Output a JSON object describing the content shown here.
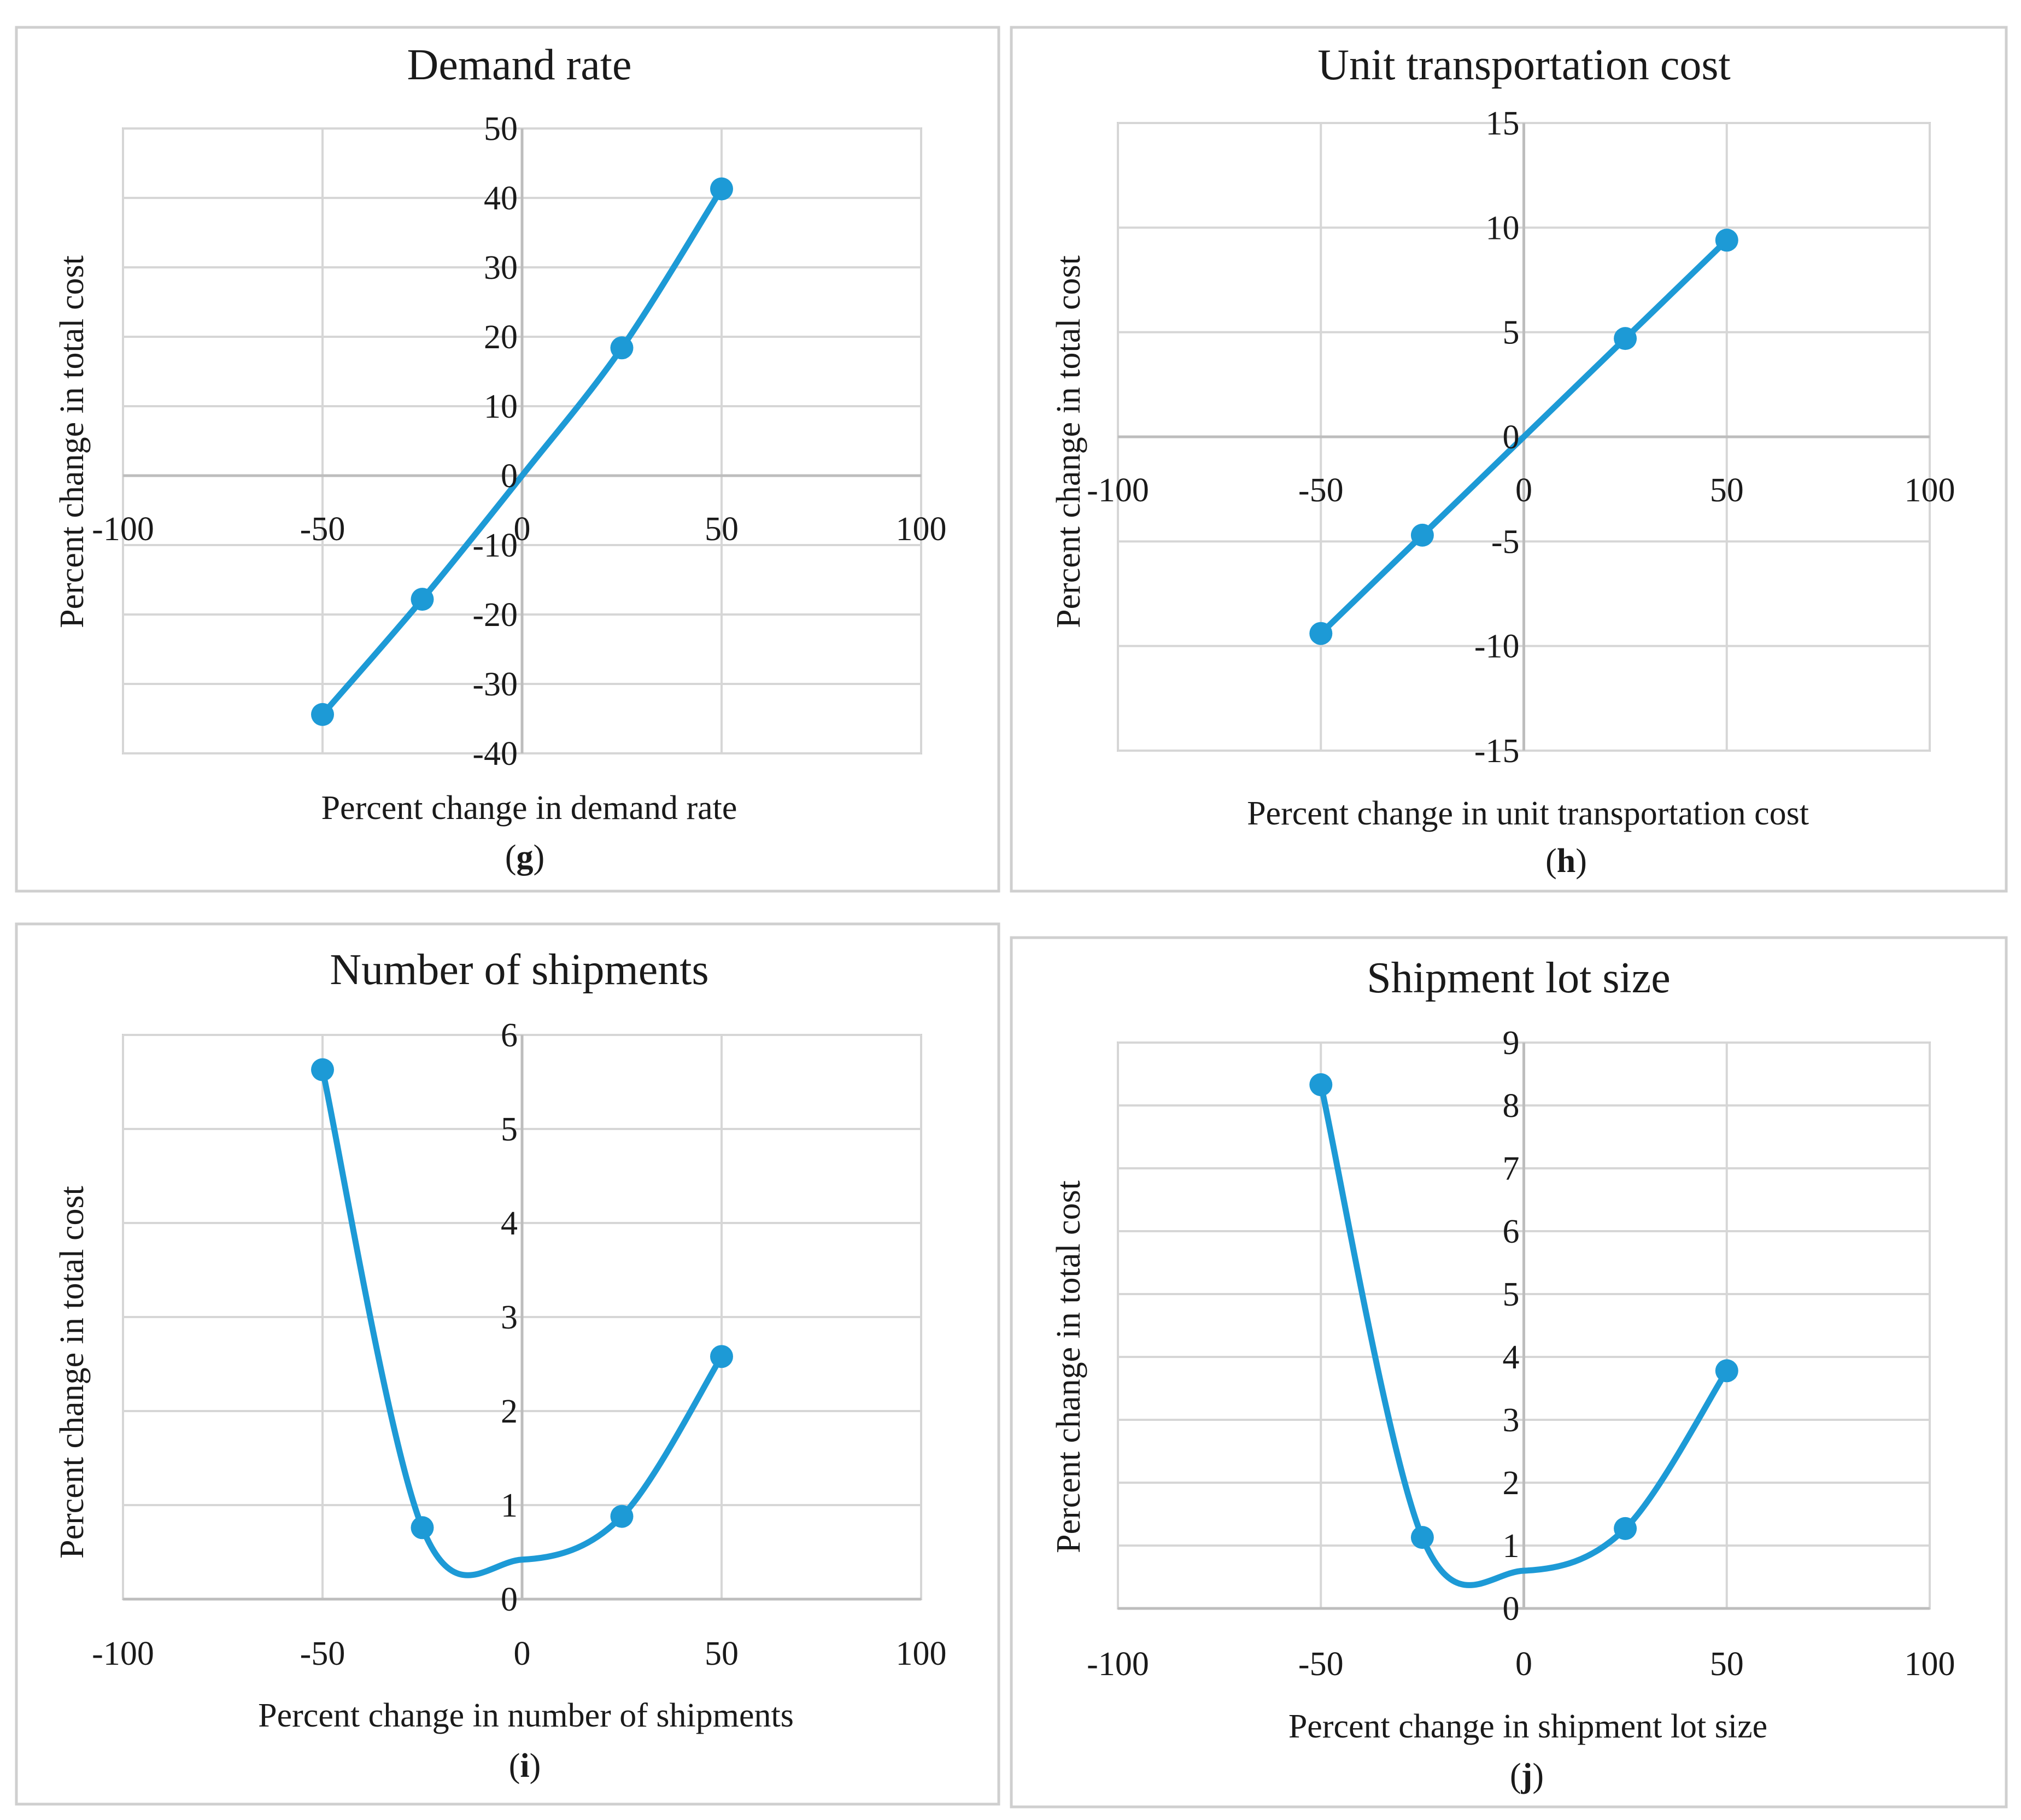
{
  "chart_data": [
    {
      "id": "g",
      "type": "line",
      "title": "Demand rate",
      "xlabel": "Percent change in demand rate",
      "ylabel": "Percent change in total cost",
      "panel_label": "g",
      "xlim": [
        -100,
        100
      ],
      "ylim": [
        -40,
        50
      ],
      "x_ticks": [
        -100,
        -50,
        0,
        50,
        100
      ],
      "y_ticks": [
        -40,
        -30,
        -20,
        -10,
        0,
        10,
        20,
        30,
        40,
        50
      ],
      "grid": true,
      "series": [
        {
          "name": "Percent change in total cost",
          "color": "#1d9ad6",
          "x": [
            -50,
            -25,
            0,
            25,
            50
          ],
          "y": [
            -34.4,
            -17.8,
            0,
            18.4,
            41.3
          ],
          "markers": [
            true,
            true,
            false,
            true,
            true
          ]
        }
      ]
    },
    {
      "id": "h",
      "type": "line",
      "title": "Unit transportation cost",
      "xlabel": "Percent change in unit transportation cost",
      "ylabel": "Percent change in total cost",
      "panel_label": "h",
      "xlim": [
        -100,
        100
      ],
      "ylim": [
        -15,
        15
      ],
      "x_ticks": [
        -100,
        -50,
        0,
        50,
        100
      ],
      "y_ticks": [
        -15,
        -10,
        -5,
        0,
        5,
        10,
        15
      ],
      "grid": true,
      "series": [
        {
          "name": "Percent change in total cost",
          "color": "#1d9ad6",
          "x": [
            -50,
            -25,
            0,
            25,
            50
          ],
          "y": [
            -9.4,
            -4.7,
            0,
            4.7,
            9.4
          ],
          "markers": [
            true,
            true,
            false,
            true,
            true
          ]
        }
      ]
    },
    {
      "id": "i",
      "type": "line",
      "title": "Number of shipments",
      "xlabel": "Percent change in number of shipments",
      "ylabel": "Percent change in total cost",
      "panel_label": "i",
      "xlim": [
        -100,
        100
      ],
      "ylim": [
        0,
        6
      ],
      "x_ticks": [
        -100,
        -50,
        0,
        50,
        100
      ],
      "y_ticks": [
        0,
        1,
        2,
        3,
        4,
        5,
        6
      ],
      "grid": true,
      "series": [
        {
          "name": "Percent change in total cost",
          "color": "#1d9ad6",
          "x": [
            -50,
            -25,
            0,
            25,
            50
          ],
          "y": [
            5.63,
            0.76,
            0.42,
            0.88,
            2.58
          ],
          "markers": [
            true,
            true,
            false,
            true,
            true
          ]
        }
      ]
    },
    {
      "id": "j",
      "type": "line",
      "title": "Shipment lot size",
      "xlabel": "Percent change in shipment lot size",
      "ylabel": "Percent change in total cost",
      "panel_label": "j",
      "xlim": [
        -100,
        100
      ],
      "ylim": [
        0,
        9
      ],
      "x_ticks": [
        -100,
        -50,
        0,
        50,
        100
      ],
      "y_ticks": [
        0,
        1,
        2,
        3,
        4,
        5,
        6,
        7,
        8,
        9
      ],
      "grid": true,
      "series": [
        {
          "name": "Percent change in total cost",
          "color": "#1d9ad6",
          "x": [
            -50,
            -25,
            0,
            25,
            50
          ],
          "y": [
            8.33,
            1.13,
            0.6,
            1.27,
            3.78
          ],
          "markers": [
            true,
            true,
            false,
            true,
            true
          ]
        }
      ]
    }
  ]
}
